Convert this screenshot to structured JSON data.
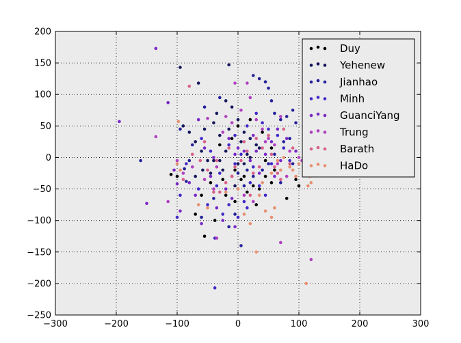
{
  "chart_data": {
    "type": "scatter",
    "xlim": [
      -300,
      300
    ],
    "ylim": [
      -250,
      200
    ],
    "x_ticks": [
      -300,
      -200,
      -100,
      0,
      100,
      200,
      300
    ],
    "y_ticks": [
      -250,
      -200,
      -150,
      -100,
      -50,
      0,
      50,
      100,
      150,
      200
    ],
    "x_tick_labels": [
      "−300",
      "−200",
      "−100",
      "0",
      "100",
      "200",
      "300"
    ],
    "y_tick_labels": [
      "−250",
      "−200",
      "−150",
      "−100",
      "−50",
      "0",
      "50",
      "100",
      "150",
      "200"
    ],
    "grid": true,
    "background": "#ebebeb",
    "legend_position": "upper right",
    "series": [
      {
        "name": "Duy",
        "color": "#000000",
        "points": [
          [
            -110,
            -27
          ],
          [
            -55,
            -125
          ],
          [
            -38,
            -100
          ],
          [
            -60,
            -60
          ],
          [
            -45,
            -40
          ],
          [
            -20,
            -60
          ],
          [
            -5,
            -70
          ],
          [
            5,
            -35
          ],
          [
            15,
            -55
          ],
          [
            25,
            -45
          ],
          [
            35,
            -50
          ],
          [
            45,
            -30
          ],
          [
            55,
            -40
          ],
          [
            40,
            40
          ],
          [
            55,
            15
          ],
          [
            -10,
            30
          ],
          [
            -30,
            20
          ],
          [
            0,
            50
          ],
          [
            20,
            60
          ],
          [
            45,
            -5
          ],
          [
            80,
            -65
          ],
          [
            100,
            -45
          ],
          [
            -100,
            -30
          ],
          [
            -70,
            -90
          ],
          [
            -25,
            -35
          ],
          [
            -5,
            -20
          ],
          [
            10,
            -30
          ],
          [
            30,
            -75
          ],
          [
            60,
            -20
          ],
          [
            95,
            -35
          ]
        ]
      },
      {
        "name": "Yehenew",
        "color": "#16165c",
        "points": [
          [
            -95,
            143
          ],
          [
            -65,
            118
          ],
          [
            -15,
            147
          ],
          [
            -80,
            40
          ],
          [
            -70,
            25
          ],
          [
            -60,
            10
          ],
          [
            -50,
            -5
          ],
          [
            -55,
            45
          ],
          [
            -40,
            55
          ],
          [
            -30,
            35
          ],
          [
            -20,
            10
          ],
          [
            -35,
            70
          ],
          [
            -20,
            90
          ],
          [
            -10,
            80
          ],
          [
            0,
            60
          ],
          [
            10,
            40
          ],
          [
            20,
            30
          ],
          [
            30,
            20
          ],
          [
            15,
            5
          ],
          [
            0,
            -10
          ],
          [
            -10,
            -30
          ],
          [
            -25,
            -20
          ],
          [
            -40,
            -5
          ],
          [
            -5,
            -45
          ],
          [
            10,
            -10
          ],
          [
            20,
            0
          ],
          [
            35,
            15
          ],
          [
            5,
            25
          ],
          [
            -15,
            45
          ],
          [
            -70,
            -30
          ],
          [
            -90,
            50
          ],
          [
            -45,
            -25
          ],
          [
            -30,
            -5
          ],
          [
            -58,
            -20
          ]
        ]
      },
      {
        "name": "Jianhao",
        "color": "#22209a",
        "points": [
          [
            -160,
            -5
          ],
          [
            -95,
            45
          ],
          [
            -80,
            -5
          ],
          [
            -85,
            -38
          ],
          [
            -55,
            80
          ],
          [
            -30,
            95
          ],
          [
            25,
            130
          ],
          [
            35,
            125
          ],
          [
            45,
            120
          ],
          [
            50,
            110
          ],
          [
            55,
            90
          ],
          [
            60,
            70
          ],
          [
            70,
            60
          ],
          [
            80,
            65
          ],
          [
            90,
            75
          ],
          [
            95,
            55
          ],
          [
            85,
            30
          ],
          [
            75,
            25
          ],
          [
            60,
            5
          ],
          [
            50,
            -10
          ],
          [
            40,
            -20
          ],
          [
            25,
            -30
          ],
          [
            10,
            -45
          ],
          [
            5,
            -140
          ],
          [
            -5,
            -90
          ],
          [
            -15,
            -110
          ],
          [
            0,
            -25
          ],
          [
            -75,
            20
          ],
          [
            -88,
            -18
          ],
          [
            -60,
            -95
          ],
          [
            -40,
            -65
          ],
          [
            70,
            -40
          ],
          [
            90,
            -10
          ],
          [
            15,
            -20
          ]
        ]
      },
      {
        "name": "Minh",
        "color": "#4028c8",
        "points": [
          [
            -100,
            -95
          ],
          [
            -95,
            -60
          ],
          [
            -85,
            -10
          ],
          [
            -65,
            -50
          ],
          [
            -50,
            -75
          ],
          [
            -35,
            -45
          ],
          [
            -25,
            -90
          ],
          [
            -15,
            -75
          ],
          [
            0,
            -95
          ],
          [
            15,
            -80
          ],
          [
            -38,
            -128
          ],
          [
            -38,
            -207
          ],
          [
            10,
            -70
          ],
          [
            35,
            -45
          ],
          [
            45,
            -60
          ],
          [
            25,
            -15
          ],
          [
            5,
            5
          ],
          [
            -5,
            35
          ],
          [
            15,
            50
          ],
          [
            30,
            70
          ],
          [
            50,
            45
          ],
          [
            65,
            35
          ],
          [
            75,
            15
          ],
          [
            85,
            -5
          ],
          [
            -15,
            20
          ],
          [
            -30,
            -25
          ],
          [
            -45,
            10
          ],
          [
            -60,
            30
          ],
          [
            -5,
            -10
          ],
          [
            20,
            -40
          ],
          [
            40,
            55
          ],
          [
            55,
            -10
          ]
        ]
      },
      {
        "name": "GuanciYang",
        "color": "#7a28c8",
        "points": [
          [
            -195,
            57
          ],
          [
            -150,
            -73
          ],
          [
            -135,
            173
          ],
          [
            -115,
            87
          ],
          [
            -105,
            -20
          ],
          [
            -100,
            -42
          ],
          [
            -95,
            -85
          ],
          [
            -80,
            -40
          ],
          [
            -70,
            -60
          ],
          [
            -55,
            15
          ],
          [
            -45,
            -30
          ],
          [
            -40,
            0
          ],
          [
            -35,
            -80
          ],
          [
            -20,
            -50
          ],
          [
            -10,
            -65
          ],
          [
            -5,
            5
          ],
          [
            -15,
            30
          ],
          [
            0,
            15
          ],
          [
            10,
            10
          ],
          [
            20,
            -5
          ],
          [
            25,
            35
          ],
          [
            35,
            -25
          ],
          [
            45,
            5
          ],
          [
            55,
            25
          ],
          [
            65,
            45
          ],
          [
            70,
            -5
          ],
          [
            80,
            30
          ],
          [
            95,
            10
          ],
          [
            -65,
            60
          ],
          [
            -25,
            -100
          ],
          [
            -5,
            -110
          ],
          [
            -60,
            -105
          ],
          [
            30,
            10
          ],
          [
            60,
            -30
          ]
        ]
      },
      {
        "name": "Trung",
        "color": "#b040c0",
        "points": [
          [
            -135,
            33
          ],
          [
            -115,
            -70
          ],
          [
            -100,
            -5
          ],
          [
            -90,
            -25
          ],
          [
            -55,
            -35
          ],
          [
            -35,
            -15
          ],
          [
            -25,
            40
          ],
          [
            -10,
            55
          ],
          [
            5,
            75
          ],
          [
            20,
            95
          ],
          [
            30,
            60
          ],
          [
            40,
            45
          ],
          [
            50,
            30
          ],
          [
            60,
            20
          ],
          [
            65,
            -10
          ],
          [
            70,
            -135
          ],
          [
            70,
            65
          ],
          [
            85,
            10
          ],
          [
            100,
            0
          ],
          [
            105,
            -5
          ],
          [
            120,
            -162
          ],
          [
            15,
            118
          ],
          [
            -5,
            118
          ],
          [
            -35,
            -128
          ],
          [
            -50,
            62
          ],
          [
            -20,
            65
          ],
          [
            10,
            -60
          ],
          [
            45,
            25
          ],
          [
            80,
            -30
          ],
          [
            -75,
            -15
          ],
          [
            -40,
            -50
          ],
          [
            25,
            -70
          ]
        ]
      },
      {
        "name": "Barath",
        "color": "#d86088",
        "points": [
          [
            -80,
            113
          ],
          [
            -35,
            -5
          ],
          [
            -55,
            25
          ],
          [
            -50,
            -20
          ],
          [
            -40,
            -55
          ],
          [
            -30,
            -55
          ],
          [
            -20,
            -40
          ],
          [
            -10,
            -30
          ],
          [
            -5,
            -15
          ],
          [
            5,
            -5
          ],
          [
            15,
            10
          ],
          [
            20,
            -60
          ],
          [
            35,
            -15
          ],
          [
            30,
            30
          ],
          [
            40,
            15
          ],
          [
            55,
            5
          ],
          [
            60,
            -15
          ],
          [
            65,
            -25
          ],
          [
            70,
            -35
          ],
          [
            75,
            45
          ],
          [
            85,
            -10
          ],
          [
            90,
            15
          ],
          [
            -90,
            -35
          ],
          [
            -75,
            5
          ],
          [
            50,
            35
          ],
          [
            10,
            25
          ],
          [
            -15,
            15
          ],
          [
            -62,
            -5
          ],
          [
            25,
            -25
          ]
        ]
      },
      {
        "name": "HaDo",
        "color": "#e89070",
        "points": [
          [
            -98,
            57
          ],
          [
            -100,
            -10
          ],
          [
            -95,
            -20
          ],
          [
            -65,
            -75
          ],
          [
            -50,
            -80
          ],
          [
            -20,
            -55
          ],
          [
            0,
            -50
          ],
          [
            10,
            -90
          ],
          [
            20,
            -105
          ],
          [
            30,
            -150
          ],
          [
            45,
            -85
          ],
          [
            60,
            -80
          ],
          [
            55,
            -95
          ],
          [
            35,
            -60
          ],
          [
            40,
            -40
          ],
          [
            55,
            -25
          ],
          [
            65,
            -5
          ],
          [
            70,
            -20
          ],
          [
            75,
            0
          ],
          [
            90,
            -20
          ],
          [
            100,
            -10
          ],
          [
            110,
            -25
          ],
          [
            115,
            -45
          ],
          [
            118,
            -30
          ],
          [
            112,
            -200
          ],
          [
            120,
            -40
          ],
          [
            95,
            -30
          ],
          [
            85,
            -15
          ]
        ]
      }
    ]
  }
}
